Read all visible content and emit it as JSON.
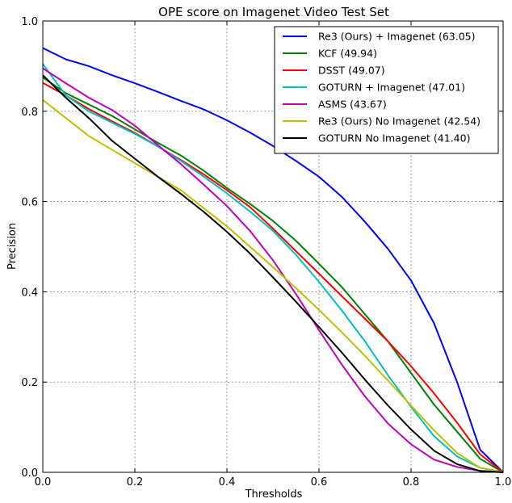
{
  "chart_data": {
    "type": "line",
    "title": "OPE score on Imagenet Video Test Set",
    "xlabel": "Thresholds",
    "ylabel": "Precision",
    "xlim": [
      0.0,
      1.0
    ],
    "ylim": [
      0.0,
      1.0
    ],
    "xticks": [
      "0.0",
      "0.2",
      "0.4",
      "0.6",
      "0.8",
      "1.0"
    ],
    "yticks": [
      "0.0",
      "0.2",
      "0.4",
      "0.6",
      "0.8",
      "1.0"
    ],
    "grid": true,
    "legend_position": "top-right",
    "series": [
      {
        "name": "Re3 (Ours) + Imagenet (63.05)",
        "color": "#0000ff",
        "points": [
          [
            0.0,
            0.94
          ],
          [
            0.05,
            0.915
          ],
          [
            0.1,
            0.9
          ],
          [
            0.15,
            0.88
          ],
          [
            0.2,
            0.862
          ],
          [
            0.25,
            0.843
          ],
          [
            0.3,
            0.823
          ],
          [
            0.35,
            0.804
          ],
          [
            0.4,
            0.78
          ],
          [
            0.45,
            0.753
          ],
          [
            0.5,
            0.723
          ],
          [
            0.55,
            0.69
          ],
          [
            0.6,
            0.655
          ],
          [
            0.65,
            0.61
          ],
          [
            0.7,
            0.555
          ],
          [
            0.75,
            0.495
          ],
          [
            0.8,
            0.425
          ],
          [
            0.85,
            0.33
          ],
          [
            0.9,
            0.2
          ],
          [
            0.95,
            0.05
          ],
          [
            1.0,
            0.0
          ]
        ]
      },
      {
        "name": "KCF (49.94)",
        "color": "#008000",
        "points": [
          [
            0.0,
            0.875
          ],
          [
            0.05,
            0.84
          ],
          [
            0.1,
            0.815
          ],
          [
            0.15,
            0.79
          ],
          [
            0.2,
            0.76
          ],
          [
            0.25,
            0.73
          ],
          [
            0.3,
            0.702
          ],
          [
            0.35,
            0.668
          ],
          [
            0.4,
            0.63
          ],
          [
            0.45,
            0.595
          ],
          [
            0.5,
            0.557
          ],
          [
            0.55,
            0.513
          ],
          [
            0.6,
            0.462
          ],
          [
            0.65,
            0.41
          ],
          [
            0.7,
            0.35
          ],
          [
            0.75,
            0.29
          ],
          [
            0.8,
            0.22
          ],
          [
            0.85,
            0.15
          ],
          [
            0.9,
            0.09
          ],
          [
            0.95,
            0.03
          ],
          [
            1.0,
            0.0
          ]
        ]
      },
      {
        "name": "DSST (49.07)",
        "color": "#ff0000",
        "points": [
          [
            0.0,
            0.863
          ],
          [
            0.05,
            0.835
          ],
          [
            0.1,
            0.805
          ],
          [
            0.15,
            0.778
          ],
          [
            0.2,
            0.752
          ],
          [
            0.25,
            0.722
          ],
          [
            0.3,
            0.692
          ],
          [
            0.35,
            0.66
          ],
          [
            0.4,
            0.625
          ],
          [
            0.45,
            0.588
          ],
          [
            0.5,
            0.54
          ],
          [
            0.55,
            0.49
          ],
          [
            0.6,
            0.44
          ],
          [
            0.65,
            0.39
          ],
          [
            0.7,
            0.34
          ],
          [
            0.75,
            0.29
          ],
          [
            0.8,
            0.235
          ],
          [
            0.85,
            0.175
          ],
          [
            0.9,
            0.11
          ],
          [
            0.95,
            0.04
          ],
          [
            1.0,
            0.0
          ]
        ]
      },
      {
        "name": "GOTURN + Imagenet (47.01)",
        "color": "#00bfbf",
        "points": [
          [
            0.0,
            0.905
          ],
          [
            0.05,
            0.835
          ],
          [
            0.1,
            0.8
          ],
          [
            0.15,
            0.775
          ],
          [
            0.2,
            0.75
          ],
          [
            0.25,
            0.722
          ],
          [
            0.3,
            0.69
          ],
          [
            0.35,
            0.655
          ],
          [
            0.4,
            0.618
          ],
          [
            0.45,
            0.578
          ],
          [
            0.5,
            0.535
          ],
          [
            0.55,
            0.482
          ],
          [
            0.6,
            0.422
          ],
          [
            0.65,
            0.358
          ],
          [
            0.7,
            0.29
          ],
          [
            0.75,
            0.215
          ],
          [
            0.8,
            0.145
          ],
          [
            0.85,
            0.08
          ],
          [
            0.9,
            0.035
          ],
          [
            0.95,
            0.01
          ],
          [
            1.0,
            0.0
          ]
        ]
      },
      {
        "name": "ASMS (43.67)",
        "color": "#bf00bf",
        "points": [
          [
            0.0,
            0.895
          ],
          [
            0.05,
            0.862
          ],
          [
            0.1,
            0.83
          ],
          [
            0.15,
            0.803
          ],
          [
            0.2,
            0.768
          ],
          [
            0.25,
            0.725
          ],
          [
            0.3,
            0.683
          ],
          [
            0.35,
            0.637
          ],
          [
            0.4,
            0.59
          ],
          [
            0.45,
            0.535
          ],
          [
            0.5,
            0.47
          ],
          [
            0.55,
            0.395
          ],
          [
            0.6,
            0.315
          ],
          [
            0.65,
            0.238
          ],
          [
            0.7,
            0.168
          ],
          [
            0.75,
            0.108
          ],
          [
            0.8,
            0.062
          ],
          [
            0.85,
            0.028
          ],
          [
            0.9,
            0.012
          ],
          [
            0.95,
            0.003
          ],
          [
            1.0,
            0.0
          ]
        ]
      },
      {
        "name": "Re3 (Ours) No Imagenet (42.54)",
        "color": "#bfbf00",
        "points": [
          [
            0.0,
            0.825
          ],
          [
            0.05,
            0.785
          ],
          [
            0.1,
            0.745
          ],
          [
            0.15,
            0.715
          ],
          [
            0.2,
            0.685
          ],
          [
            0.25,
            0.655
          ],
          [
            0.3,
            0.625
          ],
          [
            0.35,
            0.585
          ],
          [
            0.4,
            0.545
          ],
          [
            0.45,
            0.5
          ],
          [
            0.5,
            0.455
          ],
          [
            0.55,
            0.408
          ],
          [
            0.6,
            0.36
          ],
          [
            0.65,
            0.31
          ],
          [
            0.7,
            0.258
          ],
          [
            0.75,
            0.203
          ],
          [
            0.8,
            0.148
          ],
          [
            0.85,
            0.093
          ],
          [
            0.9,
            0.043
          ],
          [
            0.95,
            0.01
          ],
          [
            1.0,
            0.0
          ]
        ]
      },
      {
        "name": "GOTURN No Imagenet (41.40)",
        "color": "#000000",
        "points": [
          [
            0.0,
            0.88
          ],
          [
            0.05,
            0.83
          ],
          [
            0.1,
            0.785
          ],
          [
            0.15,
            0.735
          ],
          [
            0.2,
            0.695
          ],
          [
            0.25,
            0.655
          ],
          [
            0.3,
            0.617
          ],
          [
            0.35,
            0.577
          ],
          [
            0.4,
            0.533
          ],
          [
            0.45,
            0.485
          ],
          [
            0.5,
            0.432
          ],
          [
            0.55,
            0.378
          ],
          [
            0.6,
            0.322
          ],
          [
            0.65,
            0.265
          ],
          [
            0.7,
            0.205
          ],
          [
            0.75,
            0.148
          ],
          [
            0.8,
            0.095
          ],
          [
            0.85,
            0.048
          ],
          [
            0.9,
            0.018
          ],
          [
            0.95,
            0.003
          ],
          [
            1.0,
            0.0
          ]
        ]
      }
    ]
  }
}
